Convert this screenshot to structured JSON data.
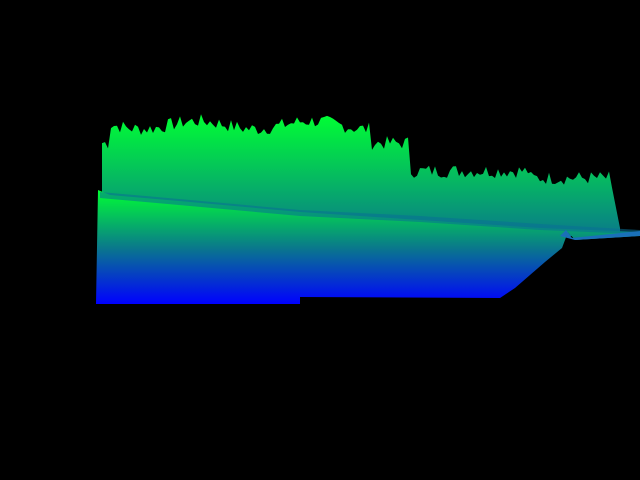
{
  "scene": {
    "background_color": "#000000",
    "gradient_top_color": "#00ff33",
    "gradient_mid_color": "#0a7a8a",
    "gradient_bottom_color": "#0000ff",
    "surface_description_hidden": ""
  }
}
